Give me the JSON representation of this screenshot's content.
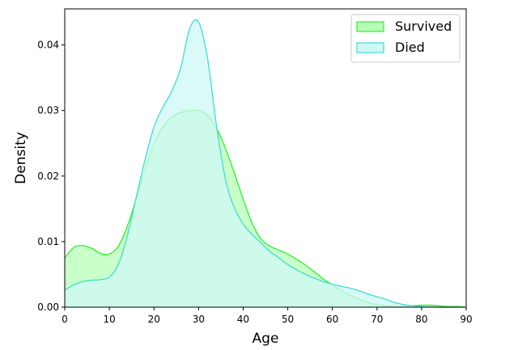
{
  "chart_data": {
    "type": "area",
    "xlabel": "Age",
    "ylabel": "Density",
    "xlim": [
      0,
      90
    ],
    "ylim": [
      0,
      0.0455
    ],
    "x_ticks": [
      "0",
      "10",
      "20",
      "30",
      "40",
      "50",
      "60",
      "70",
      "80",
      "90"
    ],
    "x_tick_values": [
      0,
      10,
      20,
      30,
      40,
      50,
      60,
      70,
      80,
      90
    ],
    "y_ticks": [
      "0.00",
      "0.01",
      "0.02",
      "0.03",
      "0.04"
    ],
    "y_tick_values": [
      0,
      0.01,
      0.02,
      0.03,
      0.04
    ],
    "grid": false,
    "legend_position": "top-right",
    "series": [
      {
        "name": "Survived",
        "line_color": "#2cf02c",
        "fill_color": "#b7ffb7",
        "x": [
          0,
          2,
          4,
          6,
          8,
          10,
          12,
          14,
          16,
          18,
          20,
          22,
          24,
          26,
          28,
          30,
          32,
          34,
          36,
          38,
          40,
          42,
          44,
          46,
          48,
          50,
          52,
          54,
          56,
          58,
          60,
          62,
          64,
          66,
          68,
          70,
          72,
          74,
          76,
          78,
          80,
          82,
          84,
          86,
          88,
          90
        ],
        "y": [
          0.0075,
          0.0091,
          0.0094,
          0.009,
          0.0082,
          0.0081,
          0.0093,
          0.0123,
          0.0165,
          0.021,
          0.0249,
          0.0275,
          0.029,
          0.0297,
          0.03,
          0.03,
          0.0293,
          0.0273,
          0.0243,
          0.0205,
          0.0165,
          0.0128,
          0.0104,
          0.0093,
          0.0087,
          0.0081,
          0.0073,
          0.0064,
          0.0054,
          0.0043,
          0.0034,
          0.0025,
          0.0018,
          0.0012,
          0.0007,
          0.0004,
          0.0002,
          0.0001,
          0.0001,
          0.0002,
          0.0003,
          0.0003,
          0.0002,
          0.0001,
          0.0001,
          0.0
        ]
      },
      {
        "name": "Died",
        "line_color": "#3fdcd0",
        "fill_color": "#cdf8f4",
        "x": [
          0,
          2,
          4,
          6,
          8,
          10,
          12,
          14,
          16,
          18,
          20,
          22,
          24,
          26,
          28,
          30,
          32,
          34,
          36,
          38,
          40,
          42,
          44,
          46,
          48,
          50,
          52,
          54,
          56,
          58,
          60,
          62,
          64,
          66,
          68,
          70,
          72,
          74,
          76,
          78,
          80,
          82,
          84,
          86,
          88,
          90
        ],
        "y": [
          0.0026,
          0.0034,
          0.0039,
          0.0041,
          0.0042,
          0.0046,
          0.0065,
          0.0108,
          0.0167,
          0.0225,
          0.0275,
          0.0305,
          0.033,
          0.0365,
          0.0425,
          0.0435,
          0.038,
          0.0278,
          0.0196,
          0.0152,
          0.0127,
          0.0111,
          0.0098,
          0.0085,
          0.0075,
          0.0065,
          0.0057,
          0.005,
          0.0044,
          0.0039,
          0.0035,
          0.0032,
          0.0029,
          0.0025,
          0.002,
          0.0016,
          0.0012,
          0.0007,
          0.0004,
          0.0002,
          0.0001,
          0.0,
          0.0,
          0.0,
          0.0,
          0.0
        ]
      }
    ]
  }
}
